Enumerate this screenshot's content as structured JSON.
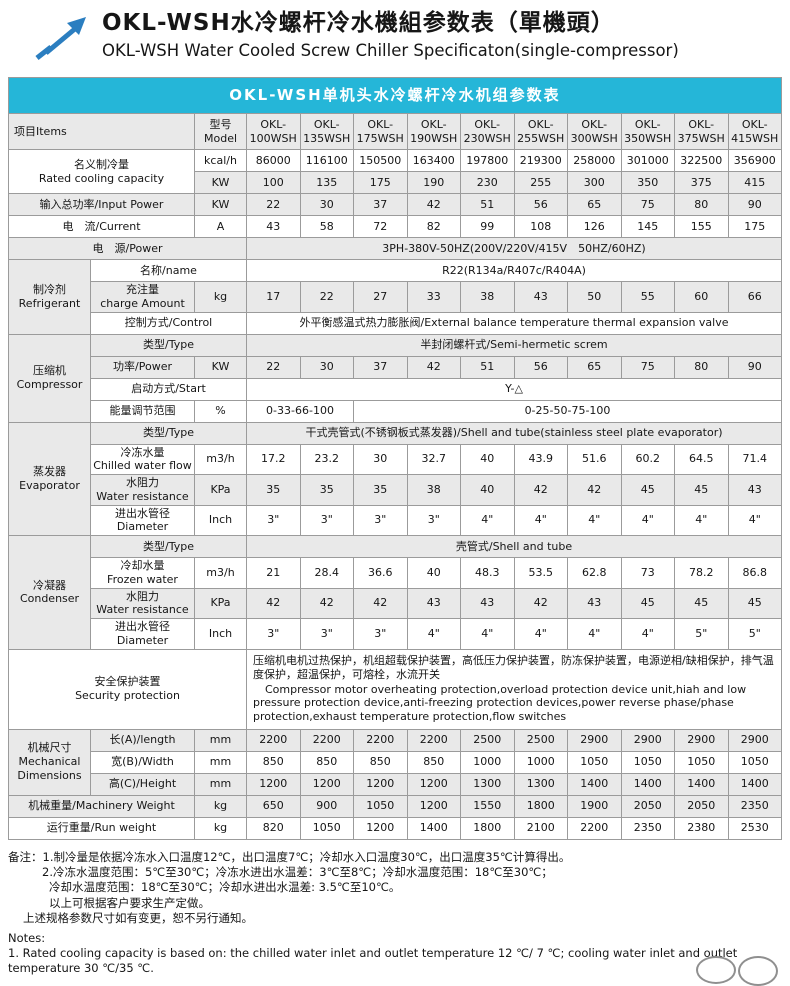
{
  "page": {
    "title_zh": "OKL-WSH水冷螺杆冷水機組参数表（單機頭）",
    "title_en": "OKL-WSH Water Cooled Screw Chiller Specificaton(single-compressor)"
  },
  "accent": {
    "banner_bg": "#25b6d8",
    "logo_blue": "#2b7ec0"
  },
  "table": {
    "banner": "OKL-WSH单机头水冷螺杆冷水机组参数表",
    "header": {
      "items": "项目Items",
      "model": "型号Model",
      "models": [
        "OKL-\n100WSH",
        "OKL-\n135WSH",
        "OKL-\n175WSH",
        "OKL-\n190WSH",
        "OKL-\n230WSH",
        "OKL-\n255WSH",
        "OKL-\n300WSH",
        "OKL-\n350WSH",
        "OKL-\n375WSH",
        "OKL-\n415WSH"
      ]
    },
    "rows": {
      "cooling": {
        "label": "名义制冷量\nRated cooling capacity",
        "kcal_unit": "kcal/h",
        "kcal": [
          "86000",
          "116100",
          "150500",
          "163400",
          "197800",
          "219300",
          "258000",
          "301000",
          "322500",
          "356900"
        ],
        "kw_unit": "KW",
        "kw": [
          "100",
          "135",
          "175",
          "190",
          "230",
          "255",
          "300",
          "350",
          "375",
          "415"
        ]
      },
      "input_power": {
        "label": "输入总功率/Input Power",
        "unit": "KW",
        "values": [
          "22",
          "30",
          "37",
          "42",
          "51",
          "56",
          "65",
          "75",
          "80",
          "90"
        ]
      },
      "current": {
        "label": "电　流/Current",
        "unit": "A",
        "values": [
          "43",
          "58",
          "72",
          "82",
          "99",
          "108",
          "126",
          "145",
          "155",
          "175"
        ]
      },
      "power": {
        "label": "电　源/Power",
        "value": "3PH-380V-50HZ(200V/220V/415V　50HZ/60HZ)"
      },
      "refrigerant": {
        "group": "制冷剂\nRefrigerant",
        "name": {
          "label": "名称/name",
          "value": "R22(R134a/R407c/R404A)"
        },
        "charge": {
          "label": "充注量\ncharge Amount",
          "unit": "kg",
          "values": [
            "17",
            "22",
            "27",
            "33",
            "38",
            "43",
            "50",
            "55",
            "60",
            "66"
          ]
        },
        "control": {
          "label": "控制方式/Control",
          "value": "外平衡感温式热力膨胀阀/External balance temperature thermal expansion valve"
        }
      },
      "compressor": {
        "group": "压缩机\nCompressor",
        "type": {
          "label": "类型/Type",
          "value": "半封闭螺杆式/Semi-hermetic screm"
        },
        "power": {
          "label": "功率/Power",
          "unit": "KW",
          "values": [
            "22",
            "30",
            "37",
            "42",
            "51",
            "56",
            "65",
            "75",
            "80",
            "90"
          ]
        },
        "start": {
          "label": "启动方式/Start",
          "value": "Y-△"
        },
        "capacity": {
          "label": "能量调节范围",
          "unit": "%",
          "left": "0-33-66-100",
          "right": "0-25-50-75-100"
        }
      },
      "evaporator": {
        "group": "蒸发器\nEvaporator",
        "type": {
          "label": "类型/Type",
          "value": "干式壳管式(不锈钢板式蒸发器)/Shell and tube(stainless steel plate evaporator)"
        },
        "flow": {
          "label": "冷冻水量\nChilled water flow",
          "unit": "m3/h",
          "values": [
            "17.2",
            "23.2",
            "30",
            "32.7",
            "40",
            "43.9",
            "51.6",
            "60.2",
            "64.5",
            "71.4"
          ]
        },
        "resistance": {
          "label": "水阻力\nWater resistance",
          "unit": "KPa",
          "values": [
            "35",
            "35",
            "35",
            "38",
            "40",
            "42",
            "42",
            "45",
            "45",
            "43"
          ]
        },
        "diameter": {
          "label": "进出水管径\nDiameter",
          "unit": "Inch",
          "values": [
            "3\"",
            "3\"",
            "3\"",
            "3\"",
            "4\"",
            "4\"",
            "4\"",
            "4\"",
            "4\"",
            "4\""
          ]
        }
      },
      "condenser": {
        "group": "冷凝器\nCondenser",
        "type": {
          "label": "类型/Type",
          "value": "壳管式/Shell and tube"
        },
        "flow": {
          "label": "冷却水量\nFrozen water",
          "unit": "m3/h",
          "values": [
            "21",
            "28.4",
            "36.6",
            "40",
            "48.3",
            "53.5",
            "62.8",
            "73",
            "78.2",
            "86.8"
          ]
        },
        "resistance": {
          "label": "水阻力\nWater resistance",
          "unit": "KPa",
          "values": [
            "42",
            "42",
            "42",
            "43",
            "43",
            "42",
            "43",
            "45",
            "45",
            "45"
          ]
        },
        "diameter": {
          "label": "进出水管径\nDiameter",
          "unit": "Inch",
          "values": [
            "3\"",
            "3\"",
            "3\"",
            "4\"",
            "4\"",
            "4\"",
            "4\"",
            "4\"",
            "5\"",
            "5\""
          ]
        }
      },
      "security": {
        "label": "安全保护装置\nSecurity protection",
        "zh": "压缩机电机过热保护，机组超载保护装置，高低压力保护装置，防冻保护装置，电源逆相/缺相保护，排气温度保护，超温保护，可熔栓，水流开关",
        "en": "Compressor motor overheating protection,overload protection device unit,hiah and low pressure protection device,anti-freezing protection devices,power reverse phase/phase protection,exhaust temperature protection,flow switches"
      },
      "dimensions": {
        "group": "机械尺寸\nMechanical\nDimensions",
        "length": {
          "label": "长(A)/length",
          "unit": "mm",
          "values": [
            "2200",
            "2200",
            "2200",
            "2200",
            "2500",
            "2500",
            "2900",
            "2900",
            "2900",
            "2900"
          ]
        },
        "width": {
          "label": "宽(B)/Width",
          "unit": "mm",
          "values": [
            "850",
            "850",
            "850",
            "850",
            "1000",
            "1000",
            "1050",
            "1050",
            "1050",
            "1050"
          ]
        },
        "height": {
          "label": "高(C)/Height",
          "unit": "mm",
          "values": [
            "1200",
            "1200",
            "1200",
            "1200",
            "1300",
            "1300",
            "1400",
            "1400",
            "1400",
            "1400"
          ]
        }
      },
      "machinery_weight": {
        "label": "机械重量/Machinery Weight",
        "unit": "kg",
        "values": [
          "650",
          "900",
          "1050",
          "1200",
          "1550",
          "1800",
          "1900",
          "2050",
          "2050",
          "2350"
        ]
      },
      "run_weight": {
        "label": "运行重量/Run weight",
        "unit": "kg",
        "values": [
          "820",
          "1050",
          "1200",
          "1400",
          "1800",
          "2100",
          "2200",
          "2350",
          "2380",
          "2530"
        ]
      }
    }
  },
  "notes": {
    "zh": [
      "备注：1.制冷量是依据冷冻水入口温度12℃，出口温度7℃；冷却水入口温度30℃，出口温度35℃计算得出。",
      "2.冷冻水温度范围：5℃至30℃；冷冻水进出水温差：3℃至8℃；冷却水温度范围：18℃至30℃；",
      "冷却水温度范围：18℃至30℃；冷却水进出水温差: 3.5℃至10℃。",
      "以上可根据客户要求生产定做。",
      "上述规格参数尺寸如有变更，恕不另行通知。"
    ],
    "en_label": "Notes:",
    "en": "1. Rated cooling capacity is based on: the chilled water inlet and outlet temperature 12 ℃/ 7 ℃; cooling water inlet and outlet temperature 30 ℃/35 ℃."
  }
}
